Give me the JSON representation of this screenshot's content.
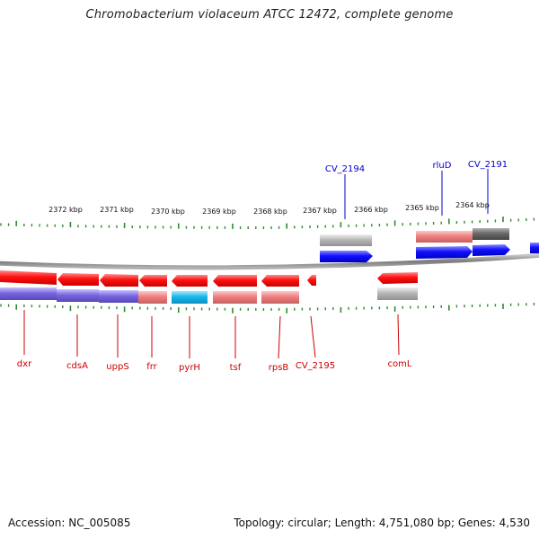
{
  "title": "Chromobacterium violaceum ATCC 12472, complete genome",
  "accession": "Accession: NC_005085",
  "topology": "Topology: circular; Length: 4,751,080 bp; Genes: 4,530",
  "colors": {
    "tick": "#2e8b2e",
    "forward_gene": "#0000ee",
    "forward_gene_label": "#0000cc",
    "reverse_gene": "#ee0000",
    "reverse_gene_label": "#cc0000",
    "pink_cds": "#e87f7f",
    "cyan_cds": "#1ab8e0",
    "purple_cds": "#7a6ad8",
    "gray_cds": "#b0b0b0",
    "dark_gray_cds": "#666666",
    "backbone": "#8a8a8a"
  },
  "scale_labels": [
    "2372 kbp",
    "2371 kbp",
    "2370 kbp",
    "2369 kbp",
    "2368 kbp",
    "2367 kbp",
    "2366 kbp",
    "2365 kbp",
    "2364 kbp"
  ],
  "forward_gene_labels": [
    "CV_2194",
    "rluD",
    "CV_2191"
  ],
  "reverse_gene_labels": [
    "dxr",
    "cdsA",
    "uppS",
    "frr",
    "pyrH",
    "tsf",
    "rpsB",
    "CV_2195",
    "comL"
  ]
}
